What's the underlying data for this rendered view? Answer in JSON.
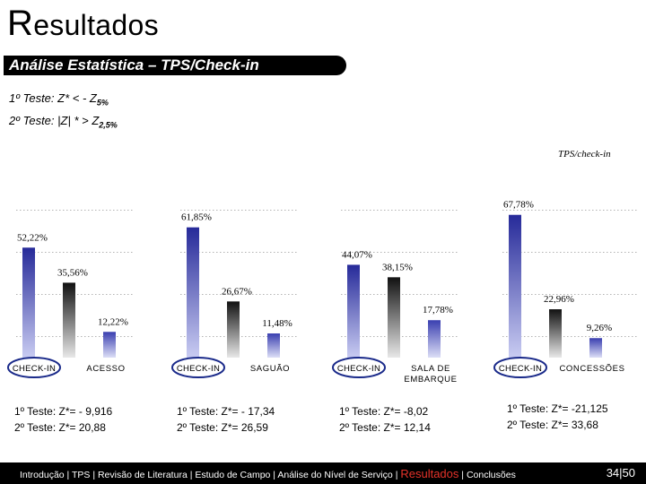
{
  "header": {
    "title_cap": "R",
    "title_rest": "esultados",
    "subtitle": "Análise Estatística – TPS/Check-in"
  },
  "tests": {
    "line1": {
      "text": "1º Teste: Z* < - Z",
      "sub": "5%"
    },
    "line2": {
      "text": "2º Teste: |Z| * > Z",
      "sub": "2,5%"
    }
  },
  "chart_data": {
    "type": "bar",
    "title": "TPS/check-in",
    "ylim": [
      0,
      80
    ],
    "groups": [
      {
        "categories": [
          "CHECK-IN",
          "ACESSO"
        ],
        "values": [
          52.22,
          35.56,
          12.22
        ],
        "labels": [
          "52,22%",
          "35,56%",
          "12,22%"
        ]
      },
      {
        "categories": [
          "CHECK-IN",
          "SAGUÃO"
        ],
        "values": [
          61.85,
          26.67,
          11.48
        ],
        "labels": [
          "61,85%",
          "26,67%",
          "11,48%"
        ]
      },
      {
        "categories": [
          "CHECK-IN",
          "SALA DE EMBARQUE"
        ],
        "values": [
          44.07,
          38.15,
          17.78
        ],
        "labels": [
          "44,07%",
          "38,15%",
          "17,78%"
        ]
      },
      {
        "categories": [
          "CHECK-IN",
          "CONCESSÕES"
        ],
        "values": [
          67.78,
          22.96,
          9.26
        ],
        "labels": [
          "67,78%",
          "22,96%",
          "9,26%"
        ]
      }
    ],
    "colors": {
      "bar_primary": "#2b2f9e",
      "bar_secondary": "#111111",
      "bar_tertiary": "#3a3fb0",
      "highlight_ring": "#1a2a8a"
    }
  },
  "results": [
    {
      "t1": "1º Teste: Z*= - 9,916",
      "t2": "2º Teste: Z*= 20,88"
    },
    {
      "t1": "1º Teste: Z*= - 17,34",
      "t2": "2º Teste: Z*= 26,59"
    },
    {
      "t1": "1º Teste: Z*= -8,02",
      "t2": "2º Teste: Z*= 12,14"
    },
    {
      "t1": "1º Teste: Z*= -21,125",
      "t2": "2º Teste: Z*= 33,68"
    }
  ],
  "footer": {
    "nav_before": "Introdução | TPS | Revisão de Literatura | Estudo de Campo | Análise do Nível de Serviço | ",
    "nav_active": "Resultados",
    "nav_after": " | Conclusões",
    "page": "34|50"
  }
}
